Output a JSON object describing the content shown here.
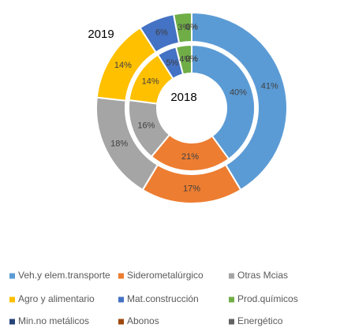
{
  "chart_data": {
    "type": "donut",
    "categories": [
      "Veh.y elem.transporte",
      "Siderometalúrgico",
      "Otras Mcias",
      "Agro y alimentario",
      "Mat.construcción",
      "Prod.químicos",
      "Min.no metálicos",
      "Abonos",
      "Energético"
    ],
    "colors": [
      "#5b9bd5",
      "#ed7d31",
      "#a5a5a5",
      "#ffc000",
      "#4472c4",
      "#70ad47",
      "#264478",
      "#9e480e",
      "#636363"
    ],
    "series": [
      {
        "name": "2019",
        "values": [
          41,
          17,
          18,
          14,
          6,
          3,
          0,
          0,
          0
        ],
        "value_labels": [
          "41%",
          "17%",
          "18%",
          "14%",
          "6%",
          "3%",
          "0%",
          "0%",
          "0%"
        ]
      },
      {
        "name": "2018",
        "values": [
          40,
          21,
          16,
          14,
          5,
          4,
          0,
          0,
          0
        ],
        "value_labels": [
          "40%",
          "21%",
          "16%",
          "14%",
          "5%",
          "4%",
          "0%",
          "0%",
          "0%"
        ]
      }
    ],
    "legend": "bottom"
  }
}
